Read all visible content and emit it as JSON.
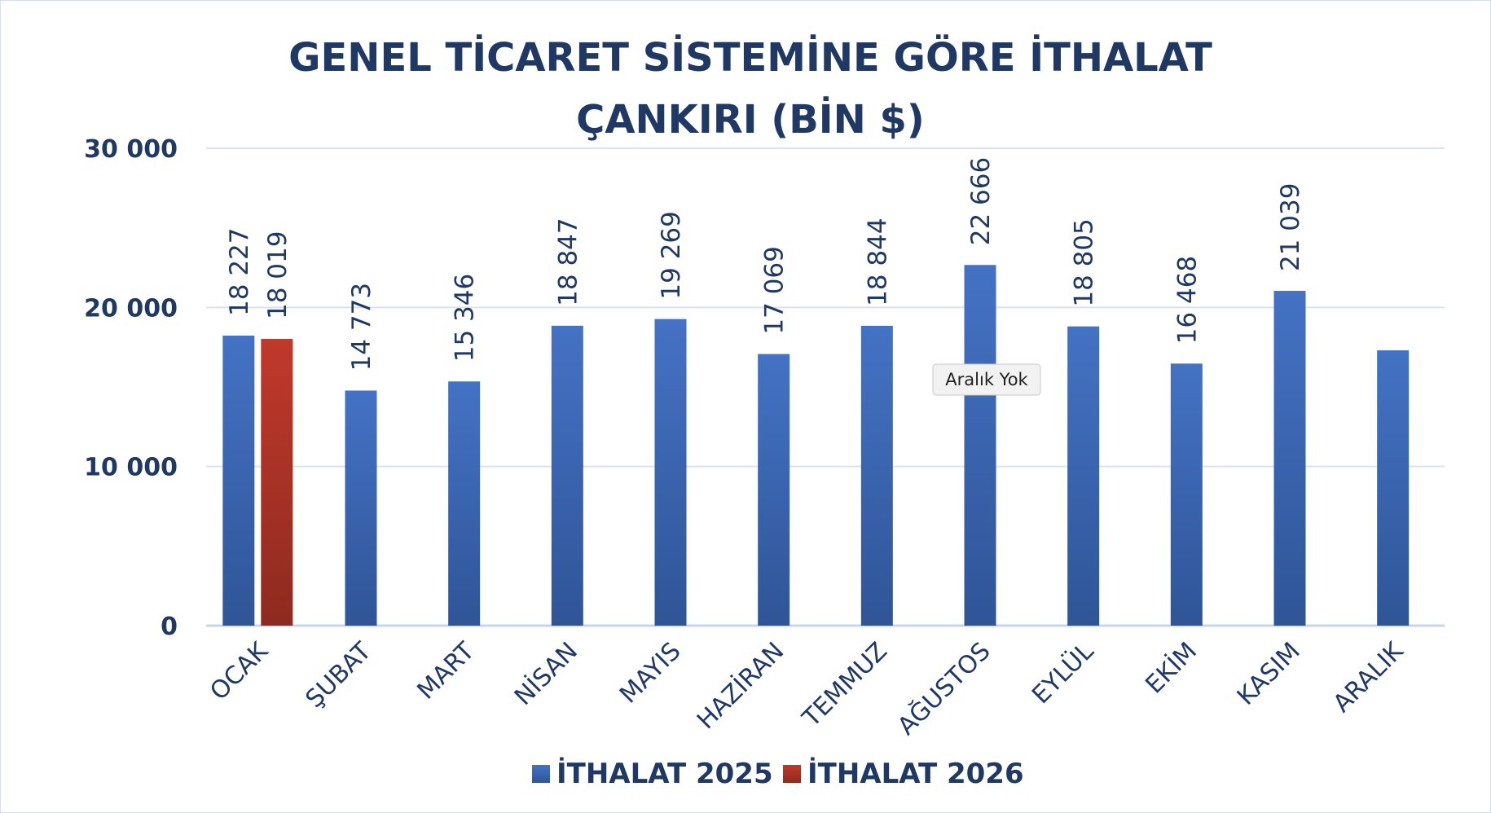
{
  "chart_data": {
    "type": "bar",
    "title": "GENEL TİCARET SİSTEMİNE GÖRE İTHALAT",
    "subtitle": "ÇANKIRI (BİN $)",
    "categories": [
      "OCAK",
      "ŞUBAT",
      "MART",
      "NİSAN",
      "MAYIS",
      "HAZİRAN",
      "TEMMUZ",
      "AĞUSTOS",
      "EYLÜL",
      "EKİM",
      "KASIM",
      "ARALIK"
    ],
    "series": [
      {
        "name": "İTHALAT 2025",
        "color": "#4472c4",
        "values": [
          18227,
          14773,
          15346,
          18847,
          19269,
          17069,
          18844,
          22666,
          18805,
          16468,
          21039,
          17300
        ],
        "data_labels": [
          "18 227",
          "14 773",
          "15 346",
          "18 847",
          "19 269",
          "17 069",
          "18 844",
          "22 666",
          "18 805",
          "16 468",
          "21 039",
          ""
        ]
      },
      {
        "name": "İTHALAT 2026",
        "color": "#c0392b",
        "values": [
          18019,
          null,
          null,
          null,
          null,
          null,
          null,
          null,
          null,
          null,
          null,
          null
        ],
        "data_labels": [
          "18 019",
          "",
          "",
          "",
          "",
          "",
          "",
          "",
          "",
          "",
          "",
          ""
        ]
      }
    ],
    "ylim": [
      0,
      30000
    ],
    "yticks": [
      0,
      10000,
      20000,
      30000
    ],
    "ytick_labels": [
      "0",
      "10 000",
      "20 000",
      "30 000"
    ],
    "xlabel": "",
    "ylabel": "",
    "grid": true,
    "legend_position": "bottom",
    "tooltip": "Aralık Yok"
  }
}
